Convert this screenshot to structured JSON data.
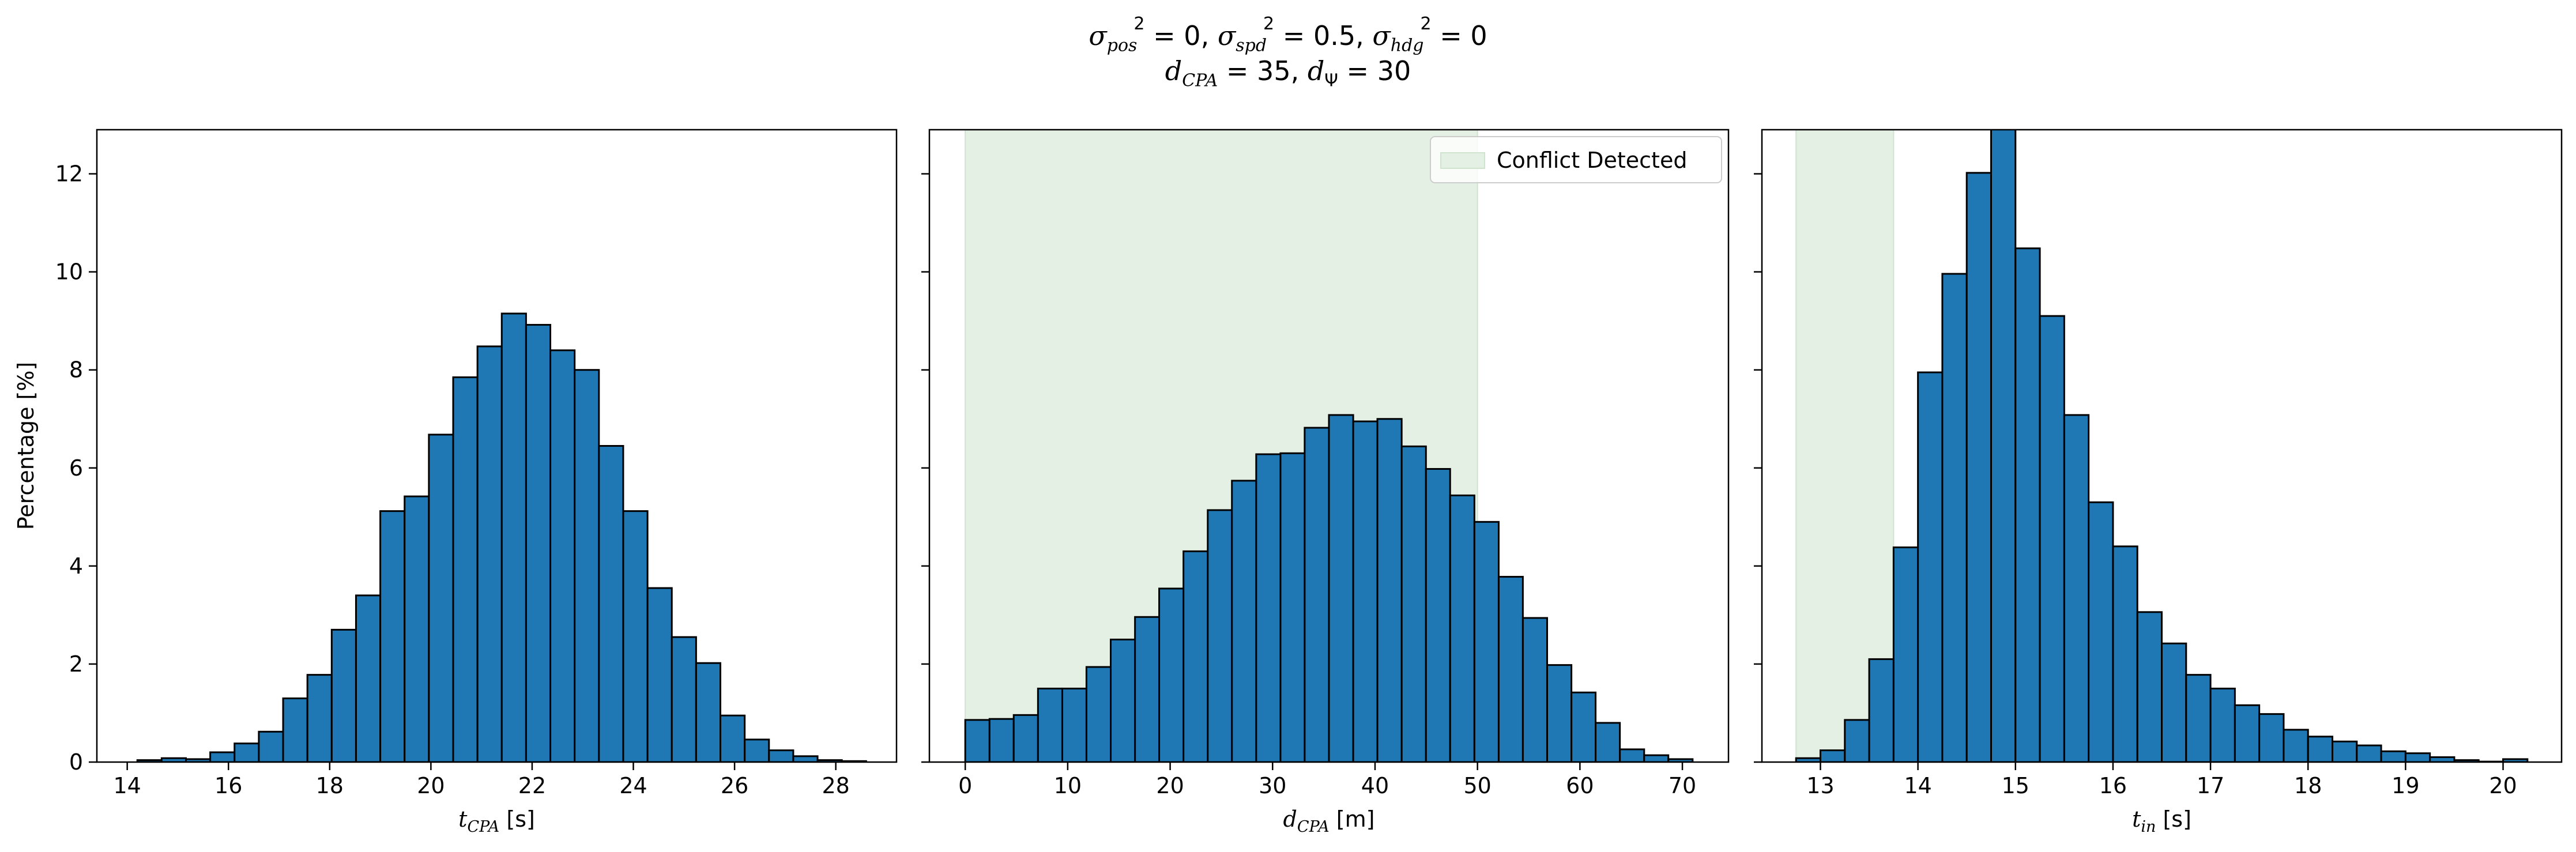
{
  "suptitle": {
    "sigma_pos": "0",
    "sigma_spd": "0.5",
    "sigma_hdg": "0",
    "d_cpa": "35",
    "d_psi": "30"
  },
  "chart_data": [
    {
      "type": "bar",
      "xlabel": "t_CPA [s]",
      "xlabel_var": "t",
      "xlabel_sub": "CPA",
      "xlabel_unit": "[s]",
      "ylabel": "Percentage [%]",
      "xlim": [
        13.4,
        29.2
      ],
      "ylim": [
        0,
        12.9
      ],
      "xticks": [
        14,
        16,
        18,
        20,
        22,
        24,
        26,
        28
      ],
      "yticks": [
        0,
        2,
        4,
        6,
        8,
        10,
        12
      ],
      "bin_edges": [
        14.2,
        14.68,
        15.16,
        15.64,
        16.12,
        16.6,
        17.08,
        17.56,
        18.04,
        18.52,
        19.0,
        19.48,
        19.96,
        20.44,
        20.92,
        21.4,
        21.88,
        22.36,
        22.84,
        23.32,
        23.8,
        24.28,
        24.76,
        25.24,
        25.72,
        26.2,
        26.68,
        27.16,
        27.64,
        28.12,
        28.6
      ],
      "values": [
        0.04,
        0.08,
        0.06,
        0.2,
        0.38,
        0.62,
        1.3,
        1.78,
        2.7,
        3.4,
        5.12,
        5.42,
        6.68,
        7.85,
        8.48,
        9.15,
        8.92,
        8.4,
        8.0,
        6.45,
        5.12,
        3.55,
        2.55,
        2.02,
        0.95,
        0.46,
        0.24,
        0.12,
        0.04,
        0.02
      ],
      "shaded_region": null,
      "legend": null
    },
    {
      "type": "bar",
      "xlabel": "d_CPA [m]",
      "xlabel_var": "d",
      "xlabel_sub": "CPA",
      "xlabel_unit": "[m]",
      "ylabel": "",
      "xlim": [
        -3.5,
        74.5
      ],
      "ylim": [
        0,
        12.9
      ],
      "xticks": [
        0,
        10,
        20,
        30,
        40,
        50,
        60,
        70
      ],
      "yticks": [
        0,
        2,
        4,
        6,
        8,
        10,
        12
      ],
      "bin_edges": [
        0.0,
        2.37,
        4.73,
        7.1,
        9.47,
        11.83,
        14.2,
        16.57,
        18.93,
        21.3,
        23.67,
        26.03,
        28.4,
        30.77,
        33.13,
        35.5,
        37.87,
        40.23,
        42.6,
        44.97,
        47.33,
        49.7,
        52.07,
        54.43,
        56.8,
        59.17,
        61.53,
        63.9,
        66.27,
        68.63,
        71.0
      ],
      "values": [
        0.86,
        0.88,
        0.96,
        1.5,
        1.5,
        1.94,
        2.5,
        2.96,
        3.54,
        4.3,
        5.14,
        5.74,
        6.28,
        6.3,
        6.82,
        7.08,
        6.95,
        7.0,
        6.44,
        5.98,
        5.44,
        4.9,
        3.78,
        2.94,
        1.98,
        1.42,
        0.8,
        0.26,
        0.14,
        0.06
      ],
      "shaded_region": [
        0,
        50
      ],
      "legend": {
        "label": "Conflict Detected",
        "placement": "upper right",
        "color": "#e5f0e5"
      }
    },
    {
      "type": "bar",
      "xlabel": "t_in [s]",
      "xlabel_var": "t",
      "xlabel_sub": "in",
      "xlabel_unit": "[s]",
      "ylabel": "",
      "xlim": [
        12.4,
        20.6
      ],
      "ylim": [
        0,
        12.9
      ],
      "xticks": [
        13,
        14,
        15,
        16,
        17,
        18,
        19,
        20
      ],
      "yticks": [
        0,
        2,
        4,
        6,
        8,
        10,
        12
      ],
      "bin_edges": [
        12.75,
        13.0,
        13.25,
        13.5,
        13.75,
        14.0,
        14.25,
        14.5,
        14.75,
        15.0,
        15.25,
        15.5,
        15.75,
        16.0,
        16.25,
        16.5,
        16.75,
        17.0,
        17.25,
        17.5,
        17.75,
        18.0,
        18.25,
        18.5,
        18.75,
        19.0,
        19.25,
        19.5,
        19.75,
        20.0,
        20.25
      ],
      "values": [
        0.08,
        0.24,
        0.86,
        2.1,
        4.38,
        7.95,
        9.96,
        12.02,
        13.2,
        10.48,
        9.1,
        7.08,
        5.3,
        4.4,
        3.06,
        2.42,
        1.78,
        1.5,
        1.16,
        0.98,
        0.66,
        0.52,
        0.42,
        0.34,
        0.22,
        0.18,
        0.1,
        0.04,
        0.01,
        0.06
      ],
      "shaded_region": [
        12.75,
        13.75
      ],
      "legend": null
    }
  ],
  "colors": {
    "bar_fill": "#1f77b4",
    "bar_edge": "#000000",
    "shade": "#e5f0e5",
    "shade_edge": "#cfe3cf"
  }
}
